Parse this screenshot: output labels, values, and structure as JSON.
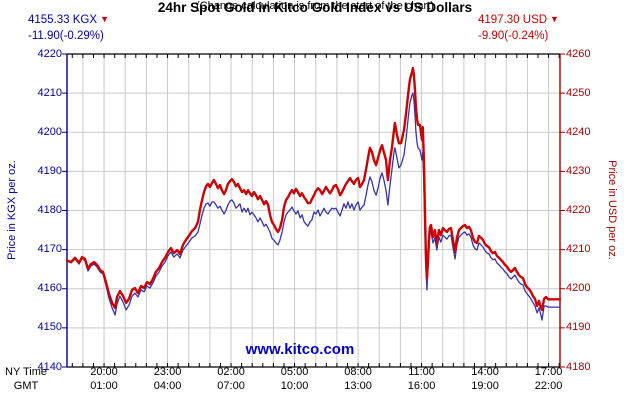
{
  "header": {
    "title": "24hr Spot Gold in Kitco Gold Index vs US Dollars",
    "subtitle": "(Change calculation is from the start of the chart)",
    "kgx_quote": {
      "price": "4155.33 KGX",
      "arrow": "▼",
      "change": "-11.90(-0.29%)"
    },
    "usd_quote": {
      "price": "4197.30 USD",
      "arrow": "▼",
      "change": "-9.90(-0.24%)"
    }
  },
  "watermark": "www.kitco.com",
  "axes": {
    "left_title": "Price in KGX per oz.",
    "right_title": "Price in USD per oz.",
    "left_ticks": [
      4220,
      4210,
      4200,
      4190,
      4180,
      4170,
      4160,
      4150,
      4140
    ],
    "right_ticks": [
      4260,
      4250,
      4240,
      4230,
      4220,
      4210,
      4200,
      4190,
      4180
    ],
    "bottom_row1_label": "NY Time",
    "bottom_row2_label": "GMT",
    "bottom_labels": [
      {
        "t": 20,
        "ny": "20:00",
        "gmt": "01:00"
      },
      {
        "t": 23,
        "ny": "23:00",
        "gmt": "04:00"
      },
      {
        "t": 26,
        "ny": "02:00",
        "gmt": "07:00"
      },
      {
        "t": 29,
        "ny": "05:00",
        "gmt": "10:00"
      },
      {
        "t": 32,
        "ny": "08:00",
        "gmt": "13:00"
      },
      {
        "t": 35,
        "ny": "11:00",
        "gmt": "16:00"
      },
      {
        "t": 38,
        "ny": "14:00",
        "gmt": "19:00"
      },
      {
        "t": 41,
        "ny": "17:00",
        "gmt": "22:00"
      }
    ]
  },
  "colors": {
    "blue_axis": "#000080",
    "blue_text": "#0000A8",
    "blue_series": "#3535AC",
    "red_axis": "#990000",
    "red_text": "#AA0000",
    "red_series": "#CC0000",
    "grid": "#C9C9C9",
    "frame": "#000000",
    "watermark_blue": "#0000CC"
  },
  "chart_data": {
    "type": "line",
    "title": "24hr Spot Gold in Kitco Gold Index vs US Dollars",
    "xlabel": "Time (NY Time / GMT)",
    "x_hours_range": [
      18.25,
      41.54
    ],
    "left_axis": {
      "label": "Price in KGX per oz.",
      "range": [
        4140,
        4220
      ]
    },
    "right_axis": {
      "label": "Price in USD per oz.",
      "range": [
        4180,
        4260
      ]
    },
    "grid": "on",
    "series_meta": [
      {
        "name": "USD",
        "axis": "right",
        "color": "#CC0000",
        "last": 4197.3,
        "change": -9.9
      },
      {
        "name": "KGX",
        "axis": "left",
        "color": "#3535AC",
        "last": 4155.33,
        "change": -11.9
      }
    ],
    "points_format": [
      "t_ny_decimal_hours",
      "usd",
      "kgx"
    ],
    "points": [
      [
        18.25,
        4207.2,
        4167.2
      ],
      [
        18.44,
        4206.8,
        4166.6
      ],
      [
        18.63,
        4207.9,
        4167.6
      ],
      [
        18.82,
        4206.6,
        4166.3
      ],
      [
        18.96,
        4208.1,
        4167.9
      ],
      [
        19.1,
        4207.6,
        4167.1
      ],
      [
        19.24,
        4205.1,
        4164.5
      ],
      [
        19.38,
        4206.3,
        4165.8
      ],
      [
        19.53,
        4206.8,
        4166.3
      ],
      [
        19.67,
        4206.1,
        4165.5
      ],
      [
        19.81,
        4204.8,
        4164.3
      ],
      [
        19.95,
        4204.3,
        4163.8
      ],
      [
        20.09,
        4201.7,
        4161.0
      ],
      [
        20.23,
        4198.7,
        4157.6
      ],
      [
        20.38,
        4196.4,
        4155.1
      ],
      [
        20.52,
        4195.1,
        4153.3
      ],
      [
        20.61,
        4197.9,
        4156.1
      ],
      [
        20.75,
        4199.4,
        4158.1
      ],
      [
        20.9,
        4198.1,
        4156.6
      ],
      [
        21.04,
        4196.4,
        4154.6
      ],
      [
        21.18,
        4197.4,
        4155.8
      ],
      [
        21.32,
        4199.7,
        4158.1
      ],
      [
        21.46,
        4200.2,
        4158.9
      ],
      [
        21.6,
        4198.9,
        4157.9
      ],
      [
        21.75,
        4200.7,
        4159.7
      ],
      [
        21.89,
        4200.2,
        4159.2
      ],
      [
        22.03,
        4201.7,
        4160.7
      ],
      [
        22.17,
        4201.2,
        4160.2
      ],
      [
        22.31,
        4202.5,
        4161.5
      ],
      [
        22.45,
        4204.3,
        4163.2
      ],
      [
        22.6,
        4205.3,
        4164.3
      ],
      [
        22.74,
        4206.8,
        4165.8
      ],
      [
        22.88,
        4207.9,
        4166.8
      ],
      [
        23.02,
        4209.4,
        4168.4
      ],
      [
        23.16,
        4210.4,
        4169.4
      ],
      [
        23.3,
        4209.1,
        4168.1
      ],
      [
        23.45,
        4209.9,
        4168.9
      ],
      [
        23.59,
        4208.9,
        4167.9
      ],
      [
        23.73,
        4211.2,
        4169.9
      ],
      [
        23.87,
        4212.5,
        4170.9
      ],
      [
        24.01,
        4213.5,
        4171.9
      ],
      [
        24.15,
        4214.7,
        4173.0
      ],
      [
        24.3,
        4215.5,
        4173.5
      ],
      [
        24.44,
        4217.1,
        4174.5
      ],
      [
        24.53,
        4220.1,
        4176.5
      ],
      [
        24.63,
        4222.7,
        4178.9
      ],
      [
        24.72,
        4224.7,
        4180.6
      ],
      [
        24.82,
        4226.2,
        4181.7
      ],
      [
        24.91,
        4226.8,
        4181.9
      ],
      [
        25.0,
        4226.0,
        4181.1
      ],
      [
        25.1,
        4227.0,
        4182.2
      ],
      [
        25.19,
        4227.8,
        4182.2
      ],
      [
        25.29,
        4226.8,
        4181.4
      ],
      [
        25.38,
        4225.7,
        4180.6
      ],
      [
        25.48,
        4226.5,
        4181.1
      ],
      [
        25.57,
        4225.2,
        4180.1
      ],
      [
        25.67,
        4224.2,
        4179.1
      ],
      [
        25.76,
        4225.2,
        4180.1
      ],
      [
        25.85,
        4226.8,
        4181.4
      ],
      [
        25.95,
        4227.5,
        4182.4
      ],
      [
        26.04,
        4228.0,
        4182.7
      ],
      [
        26.14,
        4227.3,
        4181.9
      ],
      [
        26.23,
        4226.2,
        4180.6
      ],
      [
        26.33,
        4226.8,
        4181.1
      ],
      [
        26.42,
        4225.7,
        4181.7
      ],
      [
        26.52,
        4224.7,
        4179.6
      ],
      [
        26.61,
        4225.2,
        4180.6
      ],
      [
        26.71,
        4224.2,
        4179.6
      ],
      [
        26.8,
        4225.2,
        4180.6
      ],
      [
        26.89,
        4224.4,
        4178.9
      ],
      [
        26.99,
        4223.7,
        4179.6
      ],
      [
        27.08,
        4224.7,
        4178.9
      ],
      [
        27.18,
        4223.9,
        4178.1
      ],
      [
        27.27,
        4222.9,
        4177.1
      ],
      [
        27.37,
        4223.7,
        4178.1
      ],
      [
        27.46,
        4222.7,
        4177.1
      ],
      [
        27.56,
        4221.6,
        4176.0
      ],
      [
        27.65,
        4222.4,
        4176.5
      ],
      [
        27.75,
        4221.4,
        4175.5
      ],
      [
        27.84,
        4218.9,
        4174.5
      ],
      [
        27.93,
        4217.1,
        4172.9
      ],
      [
        28.03,
        4216.3,
        4172.4
      ],
      [
        28.12,
        4215.3,
        4171.7
      ],
      [
        28.22,
        4214.5,
        4171.2
      ],
      [
        28.31,
        4215.5,
        4172.4
      ],
      [
        28.41,
        4217.6,
        4174.5
      ],
      [
        28.5,
        4220.9,
        4177.1
      ],
      [
        28.6,
        4222.7,
        4178.9
      ],
      [
        28.69,
        4223.4,
        4179.6
      ],
      [
        28.78,
        4224.4,
        4180.1
      ],
      [
        28.88,
        4225.2,
        4180.9
      ],
      [
        28.97,
        4224.4,
        4179.9
      ],
      [
        29.07,
        4225.5,
        4179.1
      ],
      [
        29.16,
        4224.7,
        4179.9
      ],
      [
        29.26,
        4223.7,
        4178.1
      ],
      [
        29.35,
        4224.4,
        4178.9
      ],
      [
        29.45,
        4223.4,
        4177.1
      ],
      [
        29.54,
        4222.7,
        4176.5
      ],
      [
        29.63,
        4221.9,
        4176.0
      ],
      [
        29.73,
        4221.9,
        4177.1
      ],
      [
        29.82,
        4222.9,
        4177.6
      ],
      [
        29.92,
        4223.9,
        4179.6
      ],
      [
        30.01,
        4225.0,
        4179.1
      ],
      [
        30.11,
        4225.7,
        4180.1
      ],
      [
        30.2,
        4225.2,
        4178.6
      ],
      [
        30.3,
        4224.2,
        4179.6
      ],
      [
        30.39,
        4225.0,
        4180.6
      ],
      [
        30.48,
        4226.0,
        4179.6
      ],
      [
        30.58,
        4225.2,
        4179.1
      ],
      [
        30.67,
        4224.4,
        4179.9
      ],
      [
        30.77,
        4225.2,
        4180.6
      ],
      [
        30.86,
        4226.2,
        4180.4
      ],
      [
        30.96,
        4226.5,
        4180.6
      ],
      [
        31.05,
        4225.5,
        4179.6
      ],
      [
        31.15,
        4223.9,
        4178.6
      ],
      [
        31.24,
        4224.7,
        4180.1
      ],
      [
        31.33,
        4225.7,
        4181.7
      ],
      [
        31.43,
        4226.8,
        4180.6
      ],
      [
        31.52,
        4227.5,
        4182.2
      ],
      [
        31.62,
        4228.3,
        4180.6
      ],
      [
        31.71,
        4227.5,
        4181.7
      ],
      [
        31.81,
        4226.8,
        4180.1
      ],
      [
        31.9,
        4227.8,
        4181.4
      ],
      [
        32.0,
        4228.3,
        4182.2
      ],
      [
        32.09,
        4226.0,
        4180.1
      ],
      [
        32.19,
        4226.8,
        4180.9
      ],
      [
        32.28,
        4227.8,
        4181.4
      ],
      [
        32.37,
        4230.3,
        4183.7
      ],
      [
        32.47,
        4233.4,
        4186.5
      ],
      [
        32.56,
        4236.0,
        4188.6
      ],
      [
        32.66,
        4234.9,
        4187.3
      ],
      [
        32.75,
        4232.9,
        4185.2
      ],
      [
        32.85,
        4231.6,
        4183.9
      ],
      [
        32.94,
        4233.4,
        4185.7
      ],
      [
        33.04,
        4235.4,
        4188.3
      ],
      [
        33.13,
        4236.7,
        4189.6
      ],
      [
        33.22,
        4234.9,
        4187.8
      ],
      [
        33.32,
        4232.9,
        4185.2
      ],
      [
        33.41,
        4227.8,
        4181.4
      ],
      [
        33.51,
        4232.9,
        4186.5
      ],
      [
        33.6,
        4236.0,
        4190.4
      ],
      [
        33.7,
        4240.6,
        4194.9
      ],
      [
        33.74,
        4242.4,
        4196.0
      ],
      [
        33.84,
        4239.3,
        4193.4
      ],
      [
        33.93,
        4237.2,
        4190.9
      ],
      [
        34.03,
        4237.2,
        4191.6
      ],
      [
        34.17,
        4240.6,
        4194.2
      ],
      [
        34.26,
        4244.4,
        4198.0
      ],
      [
        34.36,
        4249.5,
        4203.1
      ],
      [
        34.45,
        4253.4,
        4207.5
      ],
      [
        34.55,
        4255.4,
        4209.5
      ],
      [
        34.59,
        4256.4,
        4210.0
      ],
      [
        34.64,
        4254.6,
        4208.2
      ],
      [
        34.69,
        4250.8,
        4204.4
      ],
      [
        34.73,
        4247.0,
        4200.6
      ],
      [
        34.78,
        4243.6,
        4197.5
      ],
      [
        34.83,
        4241.9,
        4196.0
      ],
      [
        34.92,
        4241.9,
        4195.5
      ],
      [
        35.02,
        4238.0,
        4192.9
      ],
      [
        35.06,
        4241.3,
        4194.9
      ],
      [
        35.11,
        4232.9,
        4186.5
      ],
      [
        35.16,
        4220.1,
        4175.0
      ],
      [
        35.21,
        4207.4,
        4164.8
      ],
      [
        35.25,
        4202.7,
        4159.7
      ],
      [
        35.3,
        4206.8,
        4164.8
      ],
      [
        35.35,
        4212.5,
        4170.4
      ],
      [
        35.39,
        4215.5,
        4174.0
      ],
      [
        35.44,
        4216.3,
        4174.5
      ],
      [
        35.54,
        4213.2,
        4171.7
      ],
      [
        35.63,
        4215.0,
        4173.0
      ],
      [
        35.72,
        4211.4,
        4169.9
      ],
      [
        35.82,
        4215.0,
        4173.2
      ],
      [
        35.91,
        4213.7,
        4171.9
      ],
      [
        36.01,
        4215.5,
        4173.7
      ],
      [
        36.1,
        4215.0,
        4173.2
      ],
      [
        36.2,
        4214.5,
        4172.7
      ],
      [
        36.29,
        4215.3,
        4173.5
      ],
      [
        36.39,
        4215.5,
        4173.7
      ],
      [
        36.48,
        4212.5,
        4170.7
      ],
      [
        36.58,
        4209.4,
        4167.6
      ],
      [
        36.67,
        4213.0,
        4171.2
      ],
      [
        36.77,
        4215.0,
        4173.2
      ],
      [
        36.86,
        4215.5,
        4173.7
      ],
      [
        36.95,
        4216.0,
        4174.2
      ],
      [
        37.05,
        4216.3,
        4174.5
      ],
      [
        37.14,
        4215.5,
        4173.7
      ],
      [
        37.24,
        4215.8,
        4174.0
      ],
      [
        37.33,
        4215.0,
        4173.2
      ],
      [
        37.43,
        4213.0,
        4171.2
      ],
      [
        37.52,
        4212.0,
        4170.2
      ],
      [
        37.62,
        4211.7,
        4169.9
      ],
      [
        37.71,
        4213.5,
        4171.7
      ],
      [
        37.81,
        4213.0,
        4171.2
      ],
      [
        37.9,
        4212.5,
        4170.7
      ],
      [
        38.0,
        4211.4,
        4169.7
      ],
      [
        38.09,
        4210.9,
        4169.1
      ],
      [
        38.19,
        4210.6,
        4168.9
      ],
      [
        38.28,
        4209.6,
        4167.9
      ],
      [
        38.37,
        4209.1,
        4167.4
      ],
      [
        38.47,
        4209.4,
        4167.6
      ],
      [
        38.56,
        4208.4,
        4166.6
      ],
      [
        38.66,
        4207.9,
        4166.1
      ],
      [
        38.75,
        4207.4,
        4165.5
      ],
      [
        38.85,
        4206.8,
        4165.0
      ],
      [
        38.94,
        4206.1,
        4164.3
      ],
      [
        39.04,
        4205.6,
        4163.8
      ],
      [
        39.13,
        4204.8,
        4163.0
      ],
      [
        39.23,
        4204.3,
        4162.5
      ],
      [
        39.32,
        4204.8,
        4163.0
      ],
      [
        39.41,
        4205.3,
        4163.5
      ],
      [
        39.51,
        4204.3,
        4162.5
      ],
      [
        39.6,
        4203.5,
        4161.7
      ],
      [
        39.7,
        4203.0,
        4161.2
      ],
      [
        39.79,
        4202.7,
        4161.0
      ],
      [
        39.89,
        4201.2,
        4159.4
      ],
      [
        39.98,
        4200.4,
        4158.7
      ],
      [
        40.08,
        4199.9,
        4158.1
      ],
      [
        40.17,
        4199.2,
        4157.4
      ],
      [
        40.27,
        4198.1,
        4156.4
      ],
      [
        40.36,
        4197.4,
        4155.6
      ],
      [
        40.46,
        4195.6,
        4153.8
      ],
      [
        40.55,
        4196.9,
        4155.1
      ],
      [
        40.64,
        4195.1,
        4153.3
      ],
      [
        40.69,
        4194.6,
        4152.0
      ],
      [
        40.79,
        4197.4,
        4155.6
      ],
      [
        40.88,
        4197.9,
        4155.6
      ],
      [
        40.98,
        4197.3,
        4155.3
      ],
      [
        41.17,
        4197.3,
        4155.3
      ],
      [
        41.54,
        4197.3,
        4155.3
      ]
    ]
  }
}
